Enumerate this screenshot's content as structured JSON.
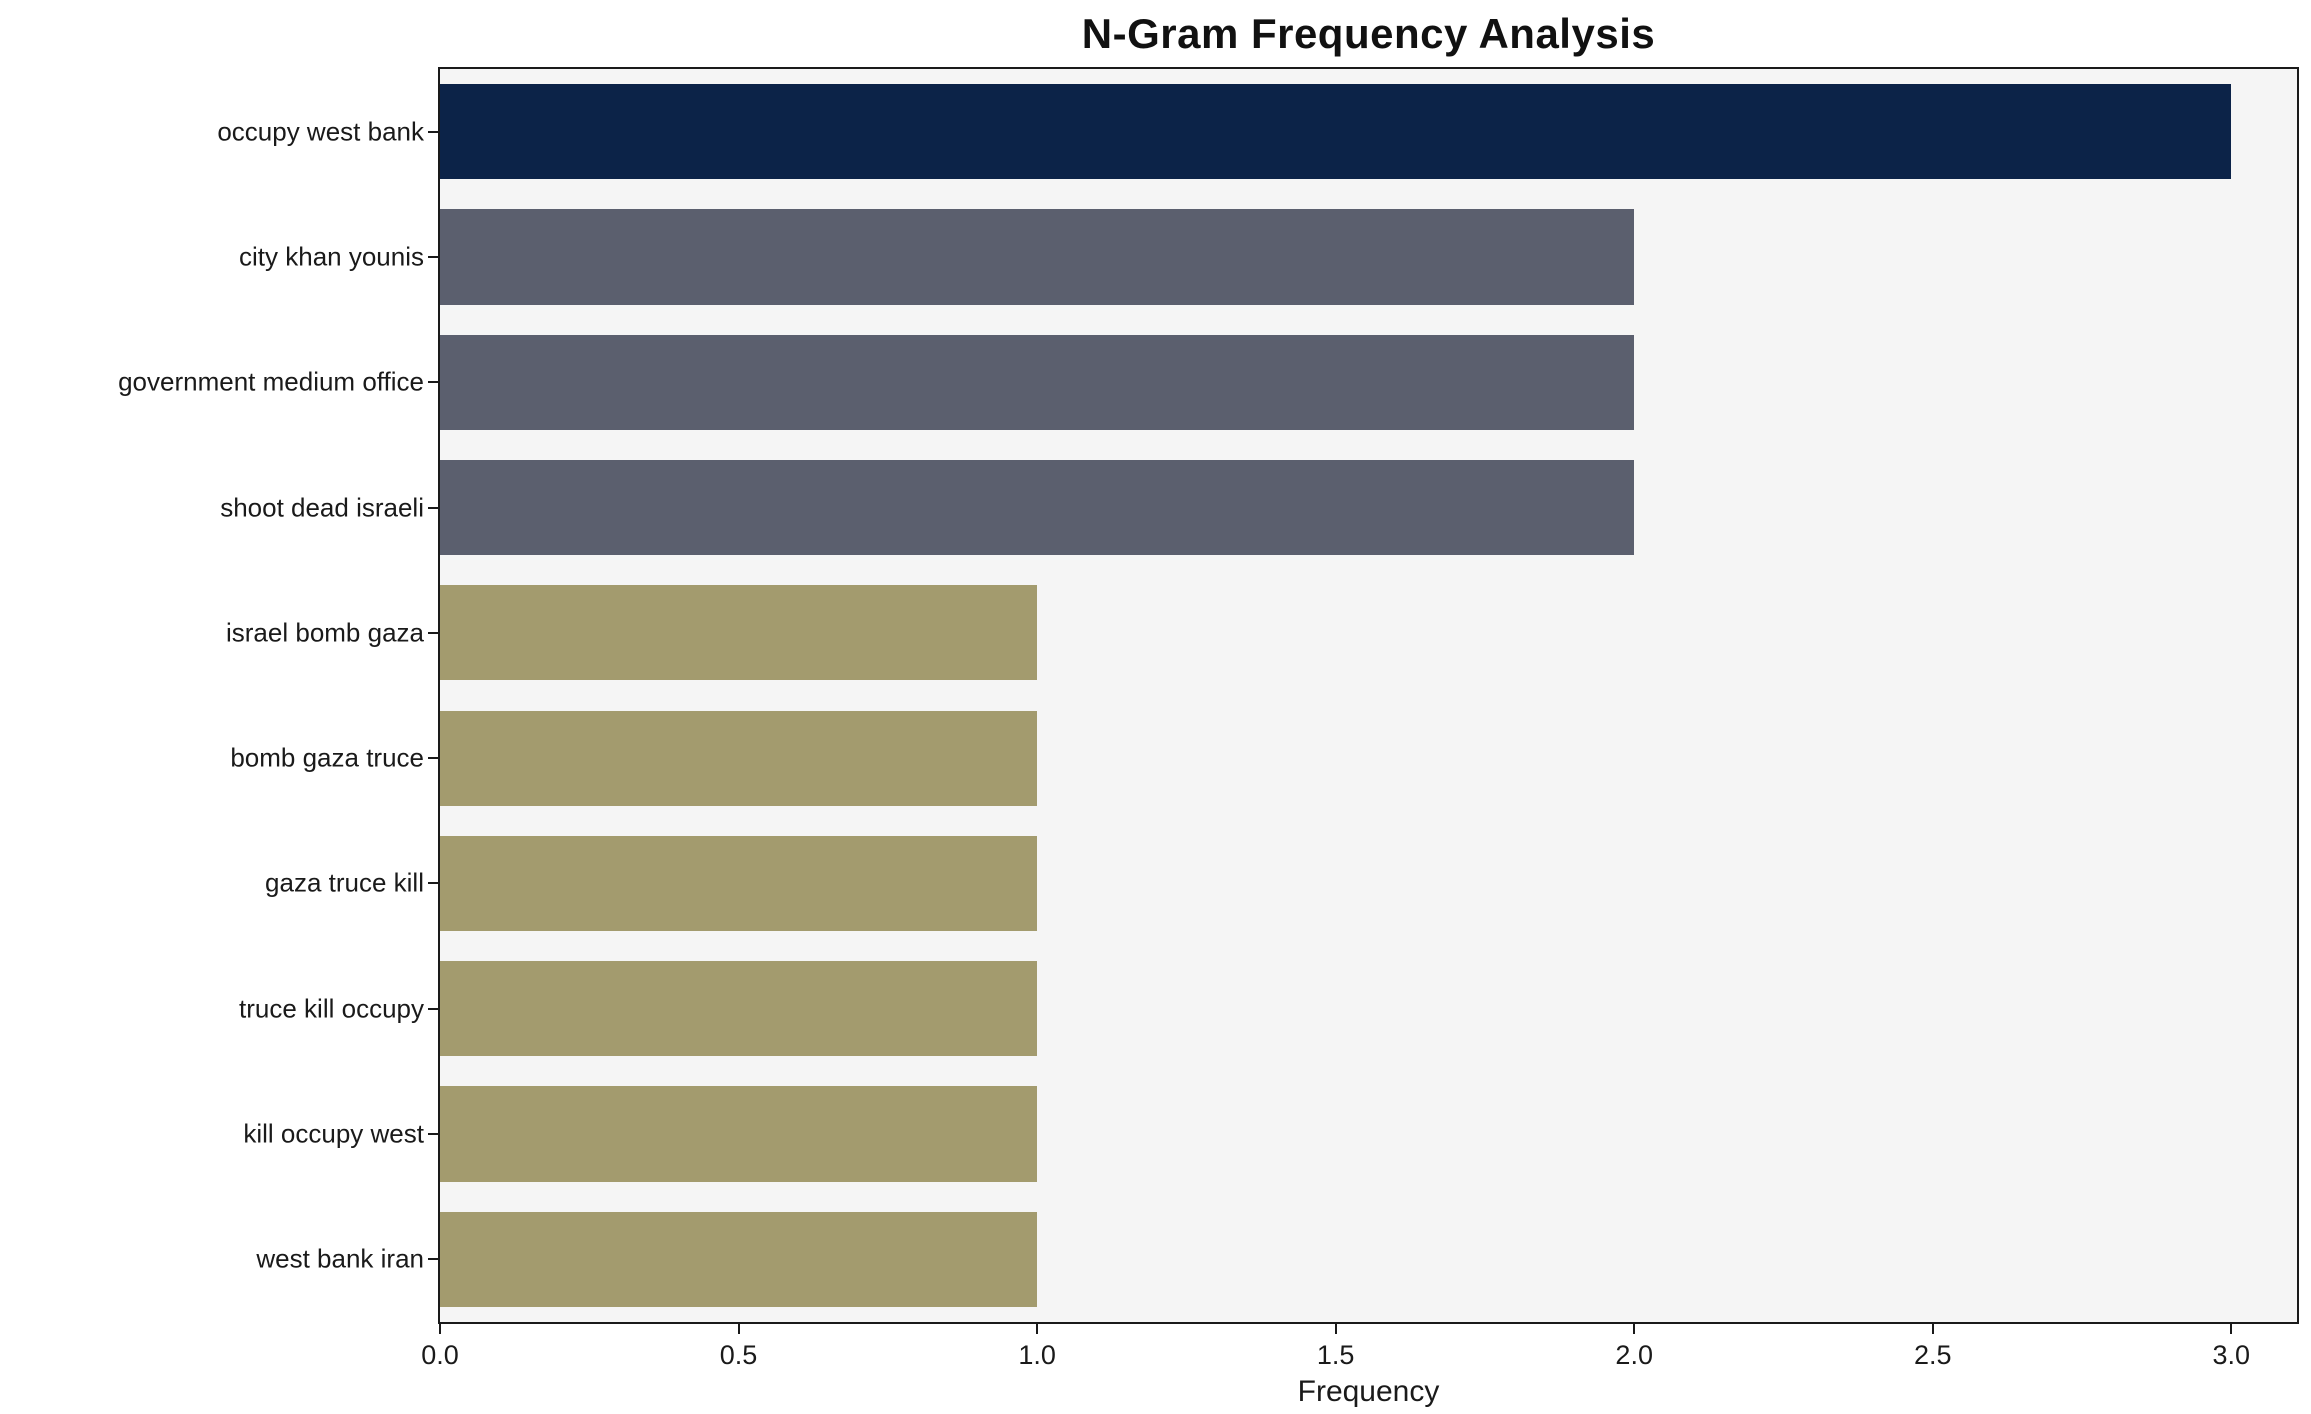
{
  "title": "N-Gram Frequency Analysis",
  "xlabel": "Frequency",
  "chart_data": {
    "type": "bar",
    "orientation": "horizontal",
    "title": "N-Gram Frequency Analysis",
    "xlabel": "Frequency",
    "ylabel": "",
    "categories": [
      "occupy west bank",
      "city khan younis",
      "government medium office",
      "shoot dead israeli",
      "israel bomb gaza",
      "bomb gaza truce",
      "gaza truce kill",
      "truce kill occupy",
      "kill occupy west",
      "west bank iran"
    ],
    "values": [
      3,
      2,
      2,
      2,
      1,
      1,
      1,
      1,
      1,
      1
    ],
    "bar_colors": [
      "#0c2348",
      "#5b5f6e",
      "#5b5f6e",
      "#5b5f6e",
      "#a39b6e",
      "#a39b6e",
      "#a39b6e",
      "#a39b6e",
      "#a39b6e",
      "#a39b6e"
    ],
    "xlim": [
      0,
      3.11
    ],
    "x_ticks": [
      0.0,
      0.5,
      1.0,
      1.5,
      2.0,
      2.5,
      3.0
    ],
    "x_tick_labels": [
      "0.0",
      "0.5",
      "1.0",
      "1.5",
      "2.0",
      "2.5",
      "3.0"
    ],
    "plot_bg": "#f5f5f5",
    "grid": false,
    "legend": false
  }
}
